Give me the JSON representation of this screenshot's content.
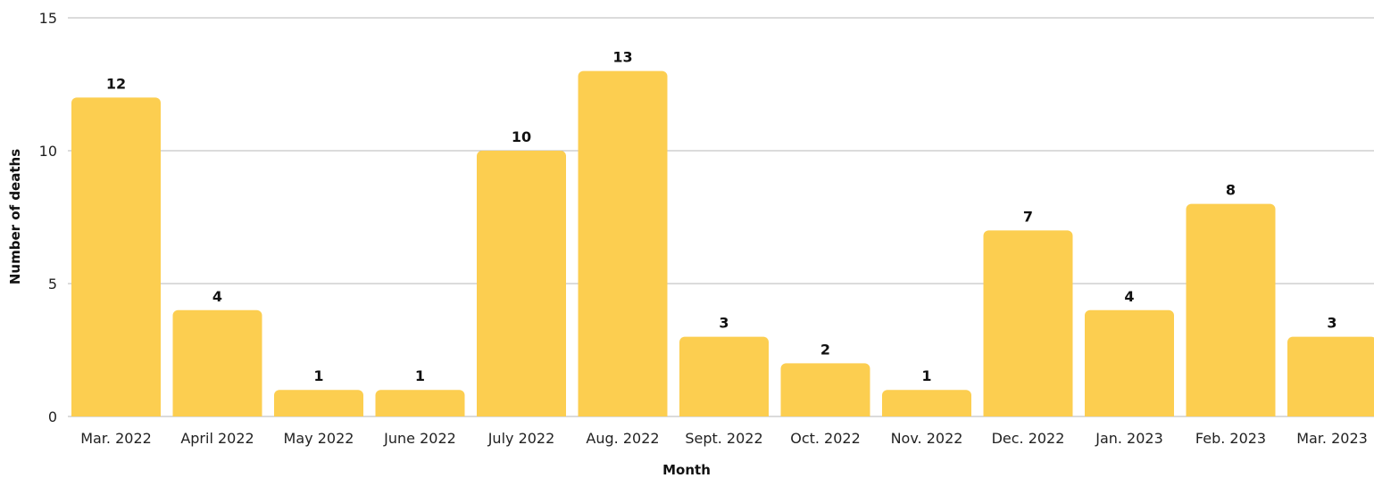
{
  "chart_data": {
    "type": "bar",
    "xlabel": "Month",
    "ylabel": "Number of deaths",
    "ylim": [
      0,
      15
    ],
    "yticks": [
      0,
      5,
      10,
      15
    ],
    "grid": true,
    "legend": "none",
    "bar_color": "#fcce50",
    "categories": [
      "Mar. 2022",
      "April 2022",
      "May 2022",
      "June 2022",
      "July 2022",
      "Aug. 2022",
      "Sept. 2022",
      "Oct. 2022",
      "Nov. 2022",
      "Dec. 2022",
      "Jan. 2023",
      "Feb. 2023",
      "Mar. 2023"
    ],
    "values": [
      12,
      4,
      1,
      1,
      10,
      13,
      3,
      2,
      1,
      7,
      4,
      8,
      3
    ],
    "data_labels": true
  }
}
